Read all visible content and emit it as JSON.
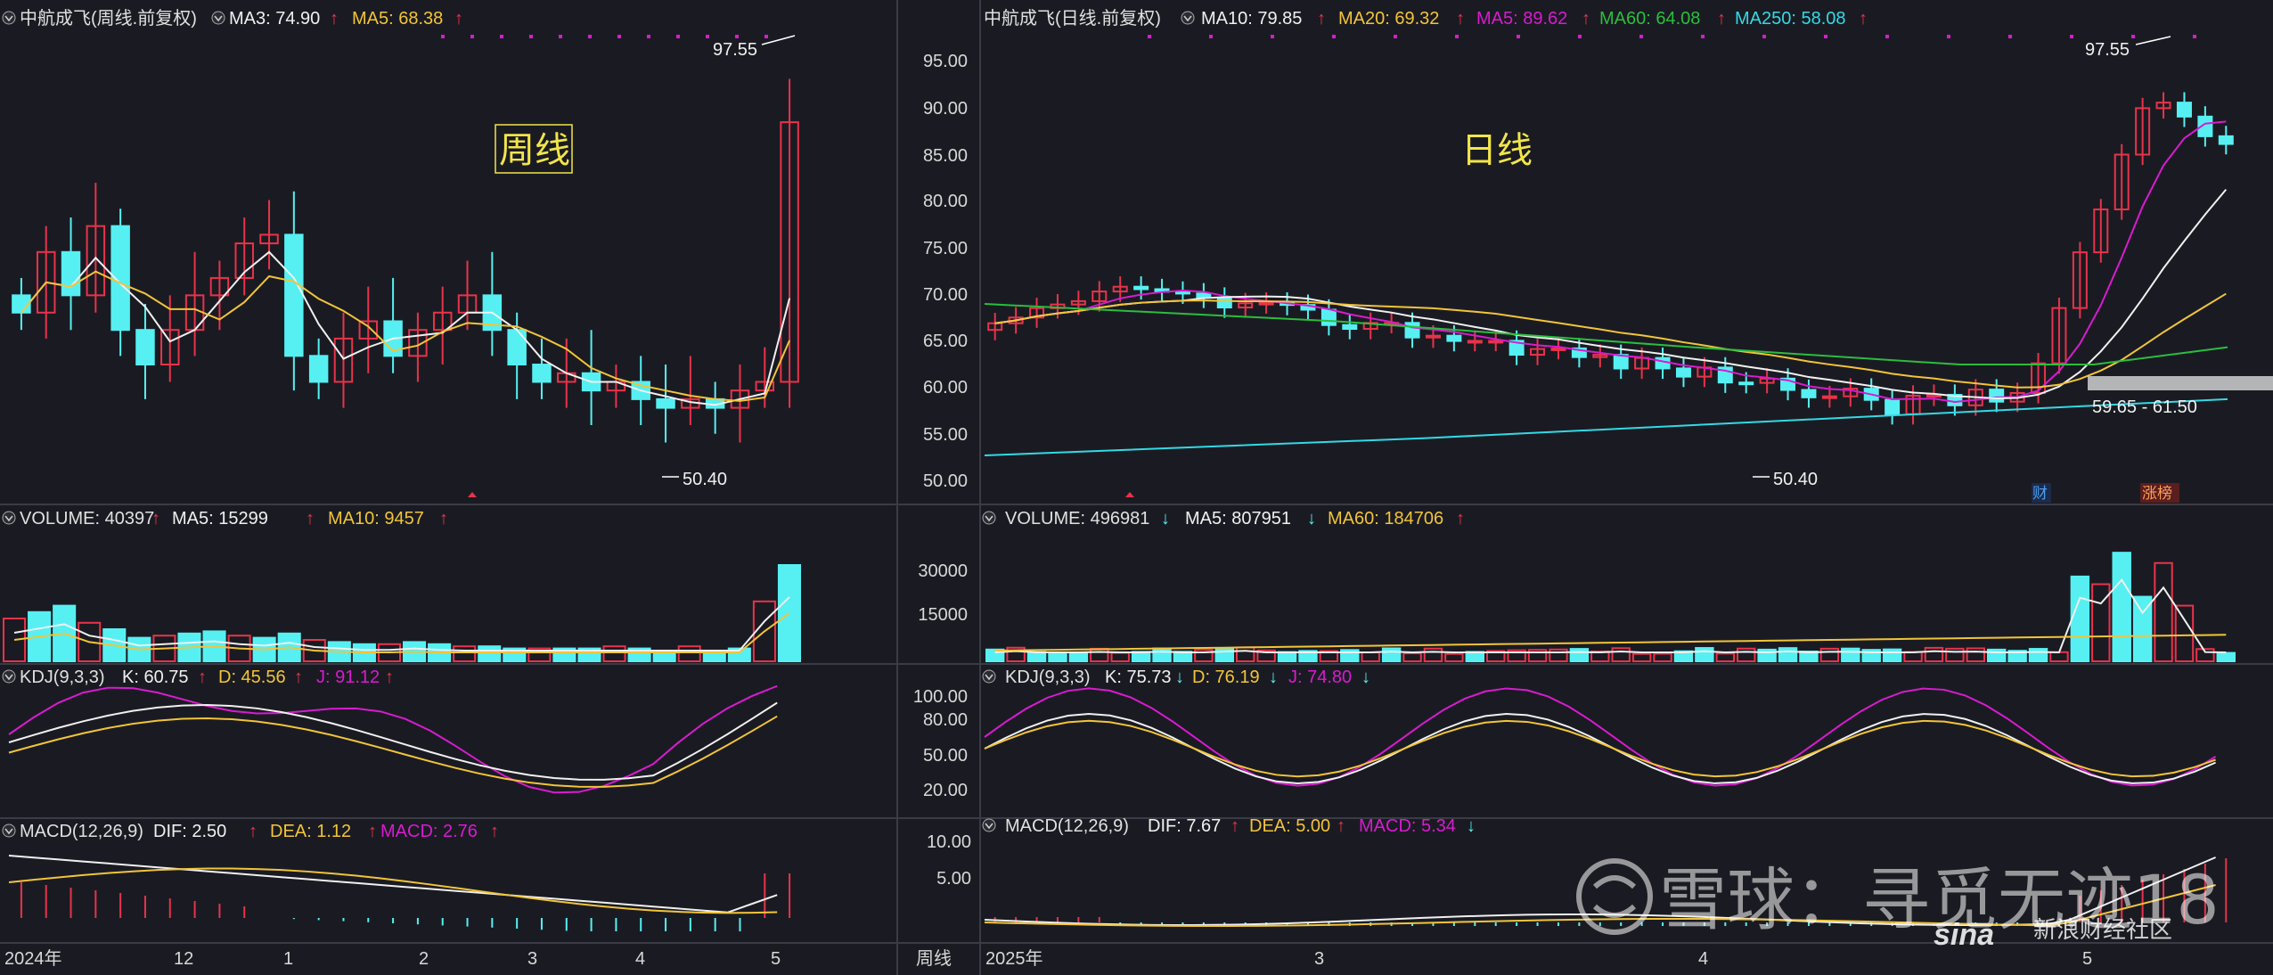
{
  "colors": {
    "bg": "#1a1b22",
    "grid": "#3a3b44",
    "up": "#e8334a",
    "down": "#56f0f3",
    "white": "#f0f0f0",
    "yellow": "#f2c43a",
    "magenta": "#d81bd0",
    "green": "#2bbd3f",
    "cyan": "#33d9e6",
    "text": "#d8d8d8"
  },
  "left": {
    "header": {
      "symbol": "中航成飞(周线.前复权)",
      "ma3_label": "MA3: 74.90",
      "ma3_arrow": "↑",
      "ma5_label": "MA5: 68.38",
      "ma5_arrow": "↑"
    },
    "title_label": "周线",
    "high_label": "97.55",
    "low_label": "50.40",
    "volume_header": {
      "name": "VOLUME: 40397",
      "a1": "↑",
      "ma5": "MA5: 15299",
      "a2": "↑",
      "ma10": "MA10: 9457",
      "a3": "↑"
    },
    "kdj_header": {
      "name": "KDJ(9,3,3)",
      "k": "K: 60.75",
      "a1": "↑",
      "d": "D: 45.56",
      "a2": "↑",
      "j": "J: 91.12",
      "a3": "↑"
    },
    "macd_header": {
      "name": "MACD(12,26,9)",
      "dif": "DIF: 2.50",
      "a1": "↑",
      "dea": "DEA: 1.12",
      "a2": "↑",
      "macd": "MACD: 2.76",
      "a3": "↑"
    },
    "x_axis_labels": [
      "2024年",
      "12",
      "1",
      "2",
      "3",
      "4",
      "5"
    ],
    "period_button": "周线",
    "macd_ticks": [
      "10.00",
      "5.00"
    ]
  },
  "right": {
    "header": {
      "symbol": "中航成飞(日线.前复权)",
      "ma10": "MA10: 79.85",
      "a1": "↑",
      "ma20": "MA20: 69.32",
      "a2": "↑",
      "ma5": "MA5: 89.62",
      "a3": "↑",
      "ma60": "MA60: 64.08",
      "a4": "↑",
      "ma250": "MA250: 58.08",
      "a5": "↑"
    },
    "title_label": "日线",
    "high_label": "97.55",
    "low_label": "50.40",
    "range_label": "59.65 - 61.50",
    "price_ticks": [
      "95.00",
      "90.00",
      "85.00",
      "80.00",
      "75.00",
      "70.00",
      "65.00",
      "60.00",
      "55.00",
      "50.00"
    ],
    "volume_header": {
      "name": "VOLUME: 496981",
      "a1": "↓",
      "ma5": "MA5: 807951",
      "a2": "↓",
      "ma60": "MA60: 184706",
      "a3": "↑"
    },
    "volume_ticks": [
      "30000",
      "15000"
    ],
    "kdj_header": {
      "name": "KDJ(9,3,3)",
      "k": "K: 75.73",
      "a1": "↓",
      "d": "D: 76.19",
      "a2": "↓",
      "j": "J: 74.80",
      "a3": "↓"
    },
    "kdj_ticks": [
      "100.00",
      "80.00",
      "50.00",
      "20.00"
    ],
    "macd_header": {
      "name": "MACD(12,26,9)",
      "dif": "DIF: 7.67",
      "a1": "↑",
      "dea": "DEA: 5.00",
      "a2": "↑",
      "macd": "MACD: 5.34",
      "a3": "↓"
    },
    "x_axis_labels": [
      "2025年",
      "3",
      "4",
      "5"
    ],
    "badge_finance": "财",
    "badge_limitup": "涨榜"
  },
  "watermark": {
    "xueqiu": "雪球：寻觅无迹18",
    "sina_logo": "sina",
    "sina_text": "新浪财经社区"
  }
}
